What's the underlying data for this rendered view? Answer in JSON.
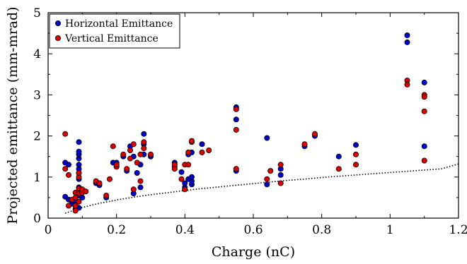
{
  "chart_data": {
    "type": "scatter",
    "title": "",
    "xlabel": "Charge (nC)",
    "ylabel": "Projected emittance (mm-mrad)",
    "xlim": [
      0,
      1.2
    ],
    "ylim": [
      0,
      5
    ],
    "x_ticks": [
      "0",
      "0.2",
      "0.4",
      "0.6",
      "0.8",
      "1",
      "1.2"
    ],
    "y_ticks": [
      "0",
      "1",
      "2",
      "3",
      "4",
      "5"
    ],
    "grid": false,
    "legend_position": "top-left",
    "series": [
      {
        "name": "Horizontal Emittance",
        "color": "#0000cc",
        "points": [
          [
            0.05,
            0.52
          ],
          [
            0.05,
            1.35
          ],
          [
            0.06,
            1.3
          ],
          [
            0.06,
            0.45
          ],
          [
            0.07,
            0.35
          ],
          [
            0.08,
            0.42
          ],
          [
            0.08,
            0.3
          ],
          [
            0.08,
            0.22
          ],
          [
            0.09,
            0.25
          ],
          [
            0.09,
            0.55
          ],
          [
            0.09,
            0.75
          ],
          [
            0.09,
            0.95
          ],
          [
            0.09,
            1.1
          ],
          [
            0.09,
            1.2
          ],
          [
            0.09,
            1.3
          ],
          [
            0.09,
            1.45
          ],
          [
            0.09,
            1.55
          ],
          [
            0.09,
            1.62
          ],
          [
            0.09,
            1.85
          ],
          [
            0.1,
            0.5
          ],
          [
            0.11,
            0.65
          ],
          [
            0.14,
            0.85
          ],
          [
            0.15,
            0.8
          ],
          [
            0.17,
            0.5
          ],
          [
            0.19,
            1.35
          ],
          [
            0.2,
            1.35
          ],
          [
            0.2,
            1.25
          ],
          [
            0.22,
            1.5
          ],
          [
            0.23,
            1.15
          ],
          [
            0.24,
            1.75
          ],
          [
            0.25,
            1.5
          ],
          [
            0.25,
            0.6
          ],
          [
            0.26,
            1.1
          ],
          [
            0.27,
            0.75
          ],
          [
            0.27,
            1.3
          ],
          [
            0.28,
            1.8
          ],
          [
            0.28,
            2.05
          ],
          [
            0.28,
            1.55
          ],
          [
            0.3,
            1.5
          ],
          [
            0.37,
            1.35
          ],
          [
            0.37,
            1.25
          ],
          [
            0.39,
            1.12
          ],
          [
            0.4,
            0.75
          ],
          [
            0.4,
            0.85
          ],
          [
            0.41,
            0.95
          ],
          [
            0.41,
            1.55
          ],
          [
            0.42,
            0.82
          ],
          [
            0.42,
            0.9
          ],
          [
            0.42,
            1.0
          ],
          [
            0.42,
            1.6
          ],
          [
            0.45,
            1.8
          ],
          [
            0.55,
            2.7
          ],
          [
            0.55,
            2.4
          ],
          [
            0.55,
            1.15
          ],
          [
            0.64,
            1.95
          ],
          [
            0.64,
            0.82
          ],
          [
            0.65,
            1.15
          ],
          [
            0.68,
            1.2
          ],
          [
            0.68,
            1.05
          ],
          [
            0.75,
            1.75
          ],
          [
            0.78,
            2.0
          ],
          [
            0.85,
            1.5
          ],
          [
            0.9,
            1.78
          ],
          [
            1.05,
            4.45
          ],
          [
            1.05,
            4.28
          ],
          [
            1.1,
            3.3
          ],
          [
            1.1,
            1.75
          ]
        ]
      },
      {
        "name": "Vertical Emittance",
        "color": "#dd0000",
        "points": [
          [
            0.05,
            2.05
          ],
          [
            0.05,
            1.2
          ],
          [
            0.06,
            1.05
          ],
          [
            0.06,
            0.3
          ],
          [
            0.07,
            0.45
          ],
          [
            0.08,
            0.18
          ],
          [
            0.08,
            0.3
          ],
          [
            0.08,
            0.5
          ],
          [
            0.08,
            0.62
          ],
          [
            0.09,
            0.4
          ],
          [
            0.09,
            0.6
          ],
          [
            0.09,
            0.72
          ],
          [
            0.09,
            1.0
          ],
          [
            0.09,
            1.1
          ],
          [
            0.1,
            0.62
          ],
          [
            0.1,
            0.7
          ],
          [
            0.11,
            0.65
          ],
          [
            0.14,
            0.9
          ],
          [
            0.15,
            0.85
          ],
          [
            0.17,
            0.55
          ],
          [
            0.18,
            0.95
          ],
          [
            0.19,
            1.75
          ],
          [
            0.2,
            1.25
          ],
          [
            0.2,
            1.3
          ],
          [
            0.22,
            1.55
          ],
          [
            0.23,
            1.2
          ],
          [
            0.24,
            1.45
          ],
          [
            0.24,
            1.65
          ],
          [
            0.25,
            0.7
          ],
          [
            0.25,
            1.8
          ],
          [
            0.26,
            1.35
          ],
          [
            0.27,
            0.9
          ],
          [
            0.27,
            1.55
          ],
          [
            0.28,
            1.7
          ],
          [
            0.28,
            1.85
          ],
          [
            0.3,
            1.55
          ],
          [
            0.37,
            1.3
          ],
          [
            0.37,
            1.2
          ],
          [
            0.39,
            0.95
          ],
          [
            0.4,
            0.7
          ],
          [
            0.4,
            1.3
          ],
          [
            0.41,
            1.6
          ],
          [
            0.41,
            1.3
          ],
          [
            0.42,
            1.85
          ],
          [
            0.42,
            1.88
          ],
          [
            0.45,
            1.6
          ],
          [
            0.47,
            1.65
          ],
          [
            0.55,
            2.65
          ],
          [
            0.55,
            2.15
          ],
          [
            0.55,
            1.2
          ],
          [
            0.64,
            0.95
          ],
          [
            0.65,
            1.15
          ],
          [
            0.68,
            1.3
          ],
          [
            0.68,
            0.85
          ],
          [
            0.75,
            1.8
          ],
          [
            0.78,
            2.05
          ],
          [
            0.85,
            1.2
          ],
          [
            0.9,
            1.55
          ],
          [
            0.9,
            1.3
          ],
          [
            1.05,
            3.35
          ],
          [
            1.05,
            3.25
          ],
          [
            1.1,
            3.0
          ],
          [
            1.1,
            2.95
          ],
          [
            1.1,
            2.6
          ],
          [
            1.1,
            1.4
          ]
        ]
      }
    ],
    "curve": {
      "style": "dotted",
      "color": "#000000",
      "x": [
        0.05,
        0.1,
        0.15,
        0.2,
        0.25,
        0.3,
        0.35,
        0.4,
        0.45,
        0.5,
        0.55,
        0.6,
        0.65,
        0.7,
        0.75,
        0.8,
        0.85,
        0.9,
        0.95,
        1.0,
        1.05,
        1.1,
        1.15,
        1.2
      ],
      "y": [
        0.12,
        0.26,
        0.36,
        0.44,
        0.51,
        0.57,
        0.62,
        0.67,
        0.72,
        0.76,
        0.8,
        0.84,
        0.88,
        0.92,
        0.95,
        0.99,
        1.02,
        1.05,
        1.08,
        1.11,
        1.14,
        1.17,
        1.2,
        1.32
      ]
    }
  }
}
